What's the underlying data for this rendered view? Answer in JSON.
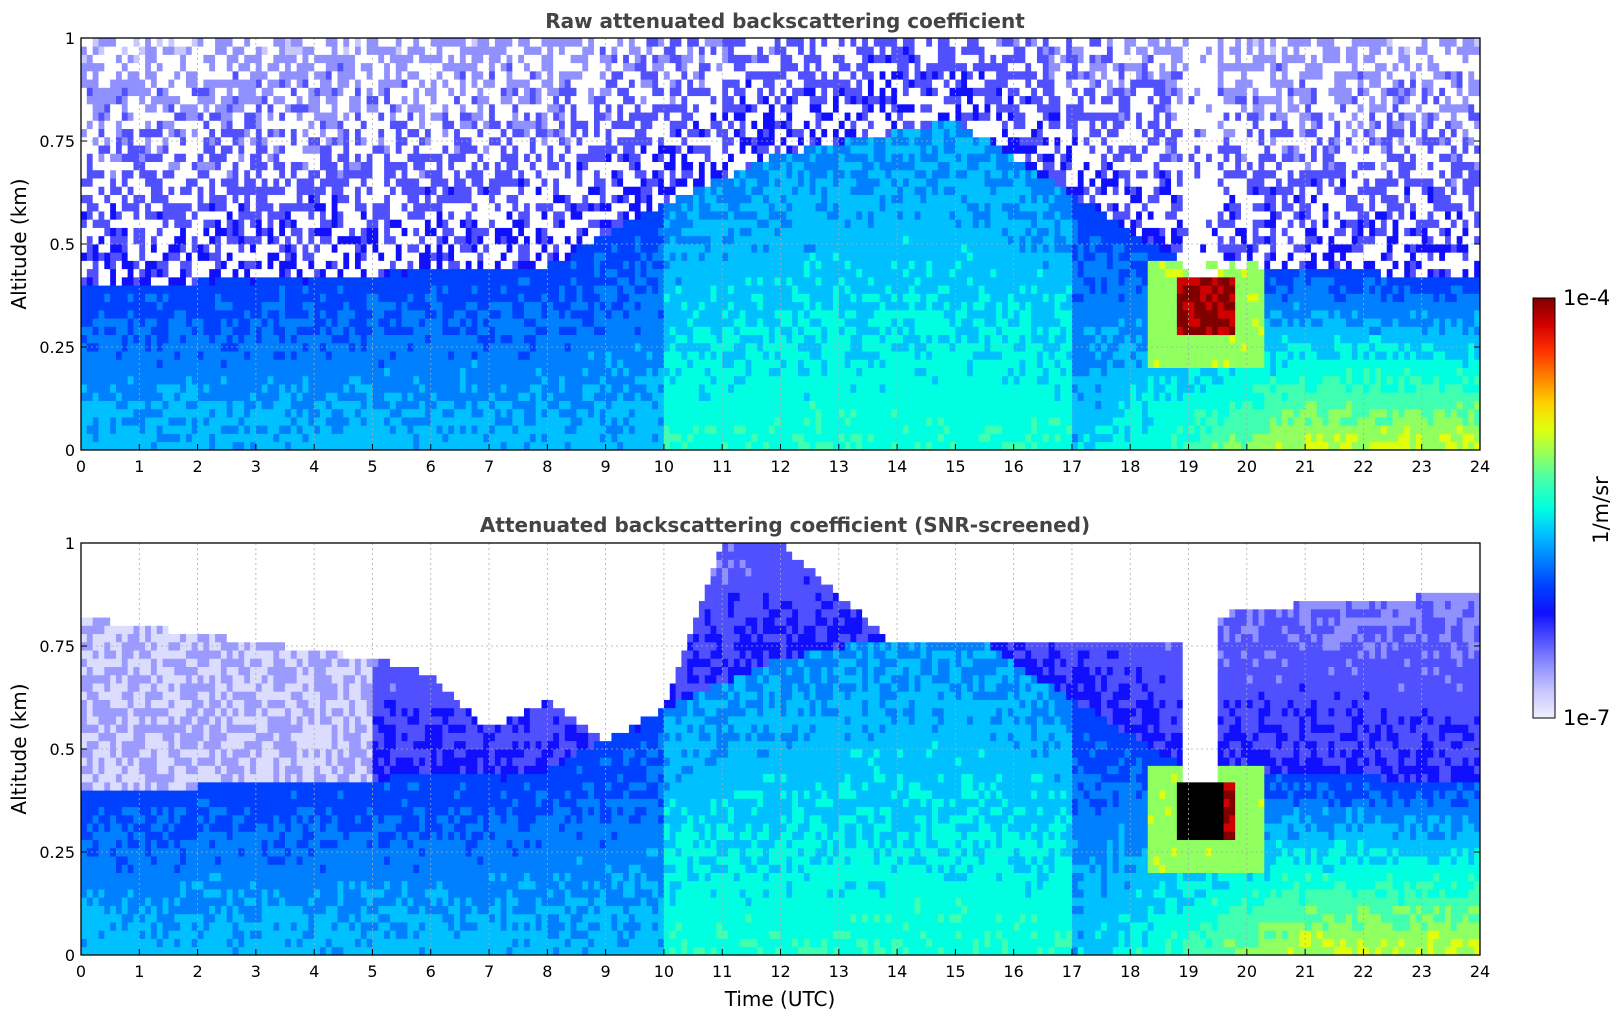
{
  "chart_data": [
    {
      "type": "heatmap",
      "title": "Raw attenuated backscattering coefficient",
      "xlabel": "",
      "ylabel": "Altitude (km)",
      "xlim": [
        0,
        24
      ],
      "ylim": [
        0,
        1
      ],
      "x_ticks": [
        "0",
        "1",
        "2",
        "3",
        "4",
        "5",
        "6",
        "7",
        "8",
        "9",
        "10",
        "11",
        "12",
        "13",
        "14",
        "15",
        "16",
        "17",
        "18",
        "19",
        "20",
        "21",
        "22",
        "23",
        "24"
      ],
      "y_ticks": [
        "0",
        "0.25",
        "0.5",
        "0.75",
        "1"
      ],
      "grid": true,
      "color_scale": "log",
      "clim": [
        "1e-7",
        "1e-4"
      ],
      "features": [
        {
          "description": "noisy sparse signal above boundary layer",
          "x_range": [
            0,
            24
          ],
          "y_range": [
            0.45,
            1.0
          ]
        },
        {
          "description": "aerosol layer top",
          "x": [
            0,
            4,
            8,
            10,
            12,
            15,
            17,
            19,
            24
          ],
          "y": [
            0.4,
            0.42,
            0.45,
            0.6,
            0.72,
            0.8,
            0.62,
            0.45,
            0.42
          ]
        },
        {
          "description": "cloud (max backscatter ~1e-4)",
          "x_range": [
            18.8,
            19.8
          ],
          "y_range": [
            0.27,
            0.42
          ]
        },
        {
          "description": "signal gap above cloud",
          "x_range": [
            18.9,
            19.5
          ],
          "y_range": [
            0.42,
            1.0
          ]
        }
      ]
    },
    {
      "type": "heatmap",
      "title": "Attenuated backscattering coefficient (SNR-screened)",
      "xlabel": "Time (UTC)",
      "ylabel": "Altitude (km)",
      "xlim": [
        0,
        24
      ],
      "ylim": [
        0,
        1
      ],
      "x_ticks": [
        "0",
        "1",
        "2",
        "3",
        "4",
        "5",
        "6",
        "7",
        "8",
        "9",
        "10",
        "11",
        "12",
        "13",
        "14",
        "15",
        "16",
        "17",
        "18",
        "19",
        "20",
        "21",
        "22",
        "23",
        "24"
      ],
      "y_ticks": [
        "0",
        "0.25",
        "0.5",
        "0.75",
        "1"
      ],
      "grid": true,
      "color_scale": "log",
      "clim": [
        "1e-7",
        "1e-4"
      ],
      "features": [
        {
          "description": "screened (white) region top boundary",
          "x": [
            0,
            5,
            6,
            7,
            8,
            9,
            10,
            11,
            12,
            14,
            16,
            18.8,
            19.8,
            24
          ],
          "y": [
            0.82,
            0.72,
            0.68,
            0.55,
            0.62,
            0.52,
            0.6,
            1.0,
            1.0,
            0.75,
            0.76,
            0.75,
            0.84,
            0.88
          ]
        },
        {
          "description": "cloud (saturated, black)",
          "x_range": [
            18.8,
            19.6
          ],
          "y_range": [
            0.28,
            0.42
          ]
        }
      ]
    }
  ],
  "colorbar": {
    "label": "1/m/sr",
    "max_label": "1e-4",
    "min_label": "1e-7",
    "colors": [
      "#eeeeff",
      "#c8c8ff",
      "#9090ff",
      "#5050ff",
      "#1010ff",
      "#0040ff",
      "#0080ff",
      "#00c0ff",
      "#00ffe0",
      "#40ffb0",
      "#90ff60",
      "#e0ff10",
      "#ffd000",
      "#ff8000",
      "#ff3000",
      "#d00000",
      "#800000"
    ]
  }
}
